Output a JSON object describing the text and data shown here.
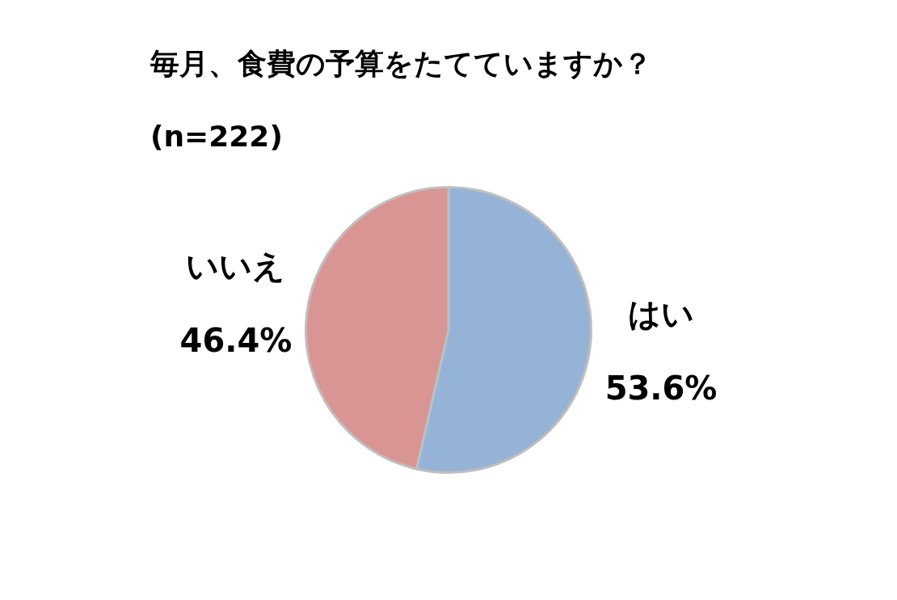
{
  "chart_data": {
    "type": "pie",
    "title": "毎月、食費の予算をたてていますか？",
    "subtitle": "(n=222)",
    "categories": [
      "はい",
      "いいえ"
    ],
    "values": [
      53.6,
      46.4
    ],
    "colors": [
      "#95b3d7",
      "#d99594"
    ],
    "value_labels": [
      "53.6%",
      "46.4%"
    ],
    "legend": false
  }
}
